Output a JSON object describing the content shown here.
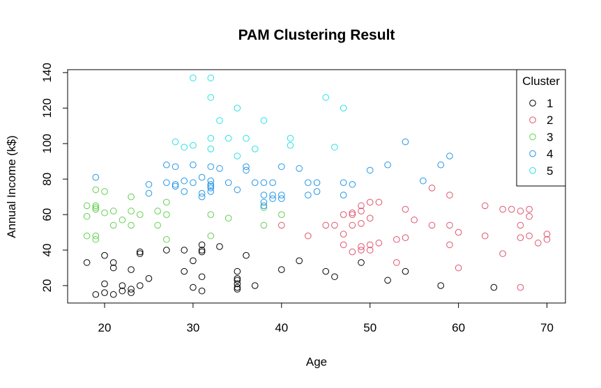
{
  "chart_data": {
    "type": "scatter",
    "title": "PAM Clustering Result",
    "xlabel": "Age",
    "ylabel": "Annual Income (k$)",
    "xlim": [
      15,
      72
    ],
    "ylim": [
      10,
      143
    ],
    "xticks": [
      20,
      30,
      40,
      50,
      60,
      70
    ],
    "yticks": [
      20,
      40,
      60,
      80,
      100,
      120,
      140
    ],
    "grid": false,
    "legend": {
      "title": "Cluster",
      "position": "top-right",
      "entries": [
        {
          "label": "1",
          "color": "#000000"
        },
        {
          "label": "2",
          "color": "#DF536B"
        },
        {
          "label": "3",
          "color": "#61D04F"
        },
        {
          "label": "4",
          "color": "#2297E6"
        },
        {
          "label": "5",
          "color": "#28E2E5"
        }
      ]
    },
    "series": [
      {
        "name": "1",
        "color": "#000000",
        "points": [
          [
            18,
            33
          ],
          [
            19,
            15
          ],
          [
            20,
            16
          ],
          [
            20,
            21
          ],
          [
            20,
            37
          ],
          [
            21,
            15
          ],
          [
            21,
            30
          ],
          [
            21,
            33
          ],
          [
            22,
            17
          ],
          [
            22,
            20
          ],
          [
            23,
            16
          ],
          [
            23,
            18
          ],
          [
            23,
            29
          ],
          [
            24,
            20
          ],
          [
            24,
            38
          ],
          [
            24,
            39
          ],
          [
            25,
            24
          ],
          [
            27,
            40
          ],
          [
            29,
            28
          ],
          [
            29,
            40
          ],
          [
            30,
            19
          ],
          [
            30,
            34
          ],
          [
            31,
            17
          ],
          [
            31,
            25
          ],
          [
            31,
            39
          ],
          [
            31,
            40
          ],
          [
            31,
            43
          ],
          [
            33,
            42
          ],
          [
            35,
            18
          ],
          [
            35,
            19
          ],
          [
            35,
            21
          ],
          [
            35,
            23
          ],
          [
            35,
            24
          ],
          [
            35,
            28
          ],
          [
            36,
            37
          ],
          [
            37,
            20
          ],
          [
            40,
            29
          ],
          [
            42,
            34
          ],
          [
            45,
            28
          ],
          [
            46,
            25
          ],
          [
            49,
            33
          ],
          [
            52,
            23
          ],
          [
            54,
            28
          ],
          [
            58,
            20
          ],
          [
            64,
            19
          ]
        ]
      },
      {
        "name": "2",
        "color": "#DF536B",
        "points": [
          [
            40,
            54
          ],
          [
            43,
            48
          ],
          [
            45,
            54
          ],
          [
            46,
            54
          ],
          [
            47,
            43
          ],
          [
            47,
            49
          ],
          [
            47,
            60
          ],
          [
            48,
            39
          ],
          [
            48,
            54
          ],
          [
            48,
            60
          ],
          [
            48,
            61
          ],
          [
            49,
            40
          ],
          [
            49,
            42
          ],
          [
            49,
            55
          ],
          [
            49,
            62
          ],
          [
            49,
            65
          ],
          [
            50,
            40
          ],
          [
            50,
            43
          ],
          [
            50,
            58
          ],
          [
            50,
            67
          ],
          [
            51,
            44
          ],
          [
            51,
            67
          ],
          [
            53,
            33
          ],
          [
            53,
            46
          ],
          [
            54,
            47
          ],
          [
            54,
            63
          ],
          [
            55,
            57
          ],
          [
            57,
            54
          ],
          [
            57,
            75
          ],
          [
            59,
            43
          ],
          [
            59,
            54
          ],
          [
            59,
            71
          ],
          [
            60,
            30
          ],
          [
            60,
            50
          ],
          [
            63,
            48
          ],
          [
            63,
            65
          ],
          [
            65,
            38
          ],
          [
            65,
            63
          ],
          [
            66,
            63
          ],
          [
            67,
            19
          ],
          [
            67,
            47
          ],
          [
            67,
            54
          ],
          [
            67,
            62
          ],
          [
            68,
            48
          ],
          [
            68,
            59
          ],
          [
            68,
            63
          ],
          [
            69,
            44
          ],
          [
            70,
            46
          ],
          [
            70,
            49
          ]
        ]
      },
      {
        "name": "3",
        "color": "#61D04F",
        "points": [
          [
            18,
            48
          ],
          [
            18,
            59
          ],
          [
            18,
            65
          ],
          [
            19,
            46
          ],
          [
            19,
            48
          ],
          [
            19,
            63
          ],
          [
            19,
            64
          ],
          [
            19,
            65
          ],
          [
            19,
            74
          ],
          [
            20,
            61
          ],
          [
            20,
            73
          ],
          [
            21,
            54
          ],
          [
            21,
            62
          ],
          [
            22,
            57
          ],
          [
            23,
            54
          ],
          [
            23,
            62
          ],
          [
            23,
            70
          ],
          [
            24,
            60
          ],
          [
            26,
            54
          ],
          [
            26,
            62
          ],
          [
            27,
            46
          ],
          [
            27,
            60
          ],
          [
            27,
            67
          ],
          [
            32,
            48
          ],
          [
            32,
            60
          ],
          [
            34,
            58
          ],
          [
            38,
            54
          ],
          [
            38,
            64
          ],
          [
            40,
            60
          ]
        ]
      },
      {
        "name": "4",
        "color": "#2297E6",
        "points": [
          [
            19,
            81
          ],
          [
            25,
            72
          ],
          [
            25,
            77
          ],
          [
            27,
            78
          ],
          [
            27,
            88
          ],
          [
            28,
            76
          ],
          [
            28,
            77
          ],
          [
            28,
            87
          ],
          [
            29,
            73
          ],
          [
            29,
            79
          ],
          [
            30,
            78
          ],
          [
            30,
            88
          ],
          [
            31,
            70
          ],
          [
            31,
            72
          ],
          [
            31,
            81
          ],
          [
            32,
            73
          ],
          [
            32,
            75
          ],
          [
            32,
            76
          ],
          [
            32,
            77
          ],
          [
            32,
            79
          ],
          [
            32,
            87
          ],
          [
            33,
            86
          ],
          [
            34,
            78
          ],
          [
            35,
            74
          ],
          [
            36,
            85
          ],
          [
            36,
            87
          ],
          [
            37,
            78
          ],
          [
            38,
            65
          ],
          [
            38,
            67
          ],
          [
            38,
            71
          ],
          [
            38,
            78
          ],
          [
            39,
            69
          ],
          [
            39,
            71
          ],
          [
            39,
            78
          ],
          [
            40,
            69
          ],
          [
            40,
            71
          ],
          [
            40,
            87
          ],
          [
            42,
            86
          ],
          [
            43,
            71
          ],
          [
            43,
            78
          ],
          [
            44,
            73
          ],
          [
            44,
            78
          ],
          [
            47,
            71
          ],
          [
            47,
            78
          ],
          [
            48,
            77
          ],
          [
            50,
            85
          ],
          [
            52,
            88
          ],
          [
            54,
            101
          ],
          [
            56,
            79
          ],
          [
            58,
            88
          ],
          [
            59,
            93
          ]
        ]
      },
      {
        "name": "5",
        "color": "#28E2E5",
        "points": [
          [
            28,
            101
          ],
          [
            29,
            98
          ],
          [
            30,
            99
          ],
          [
            30,
            137
          ],
          [
            32,
            97
          ],
          [
            32,
            103
          ],
          [
            32,
            126
          ],
          [
            32,
            137
          ],
          [
            33,
            113
          ],
          [
            34,
            103
          ],
          [
            35,
            93
          ],
          [
            35,
            120
          ],
          [
            36,
            103
          ],
          [
            37,
            97
          ],
          [
            38,
            113
          ],
          [
            41,
            99
          ],
          [
            41,
            103
          ],
          [
            45,
            126
          ],
          [
            46,
            98
          ],
          [
            47,
            120
          ]
        ]
      }
    ]
  }
}
